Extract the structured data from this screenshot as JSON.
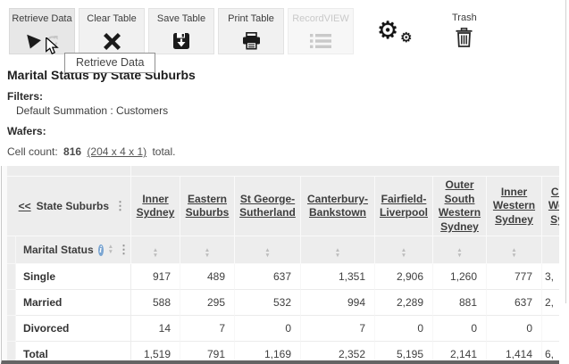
{
  "toolbar": {
    "buttons": [
      {
        "label": "Retrieve Data",
        "icon": "play-and-refresh-icon",
        "hovered": true
      },
      {
        "label": "Clear Table",
        "icon": "x-cross-icon"
      },
      {
        "label": "Save Table",
        "icon": "floppy-save-icon"
      },
      {
        "label": "Print Table",
        "icon": "printer-icon"
      },
      {
        "label": "RecordVIEW",
        "icon": "record-list-icon",
        "disabled": true
      }
    ],
    "settings_icon": "gears-icon",
    "trash_label": "Trash",
    "trash_icon": "trash-can-icon"
  },
  "tooltip": {
    "text": "Retrieve Data"
  },
  "page": {
    "title": "Marital Status by State Suburbs",
    "filters_label": "Filters:",
    "filters_value": "Default Summation : Customers",
    "wafers_label": "Wafers:",
    "cell_count_label": "Cell count:",
    "cell_count_value": "816",
    "cell_count_link": "(204 x 4 x 1)",
    "cell_count_suffix": "total."
  },
  "table": {
    "corner_link": "<<",
    "corner_label": "State Suburbs",
    "row_dimension_label": "Marital Status",
    "columns": [
      "Inner Sydney",
      "Eastern Suburbs",
      "St George-Sutherland",
      "Canterbury-Bankstown",
      "Fairfield-Liverpool",
      "Outer South Western Sydney",
      "Inner Western Sydney",
      "Central Western Sydney"
    ],
    "rows": [
      {
        "label": "Single",
        "values": [
          "917",
          "489",
          "637",
          "1,351",
          "2,906",
          "1,260",
          "777",
          "3,"
        ]
      },
      {
        "label": "Married",
        "values": [
          "588",
          "295",
          "532",
          "994",
          "2,289",
          "881",
          "637",
          "2,"
        ]
      },
      {
        "label": "Divorced",
        "values": [
          "14",
          "7",
          "0",
          "7",
          "0",
          "0",
          "0",
          ""
        ]
      },
      {
        "label": "Total",
        "values": [
          "1,519",
          "791",
          "1,169",
          "2,352",
          "5,195",
          "2,141",
          "1,414",
          "6,"
        ]
      }
    ]
  }
}
